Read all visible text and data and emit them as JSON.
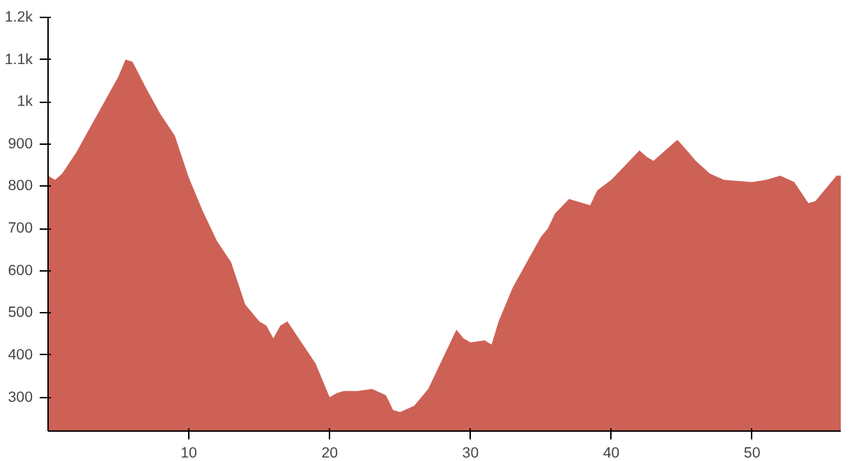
{
  "chart_data": {
    "type": "area",
    "x": [
      0,
      0.5,
      1,
      2,
      3,
      4,
      5,
      5.5,
      6,
      7,
      8,
      9,
      10,
      11,
      12,
      13,
      13.5,
      14,
      15,
      15.5,
      16,
      16.5,
      17,
      18,
      19,
      19.5,
      20,
      20.5,
      21,
      22,
      23,
      24,
      24.5,
      25,
      26,
      27,
      28,
      29,
      29.5,
      30,
      31,
      31.5,
      32,
      33,
      34,
      35,
      35.5,
      36,
      37,
      38,
      38.5,
      39,
      40,
      41,
      42,
      42.5,
      43,
      44,
      44.7,
      45.5,
      46,
      47,
      48,
      50,
      51,
      52,
      53,
      54,
      54.5,
      55,
      56,
      56.3
    ],
    "series": [
      {
        "color": "#cd6155",
        "values": [
          825,
          815,
          830,
          880,
          940,
          1000,
          1060,
          1100,
          1095,
          1030,
          970,
          920,
          820,
          740,
          670,
          620,
          570,
          520,
          480,
          470,
          440,
          470,
          480,
          430,
          380,
          340,
          300,
          310,
          315,
          315,
          320,
          305,
          270,
          265,
          280,
          320,
          390,
          460,
          440,
          430,
          435,
          425,
          480,
          560,
          620,
          680,
          700,
          735,
          770,
          760,
          755,
          790,
          815,
          850,
          885,
          870,
          860,
          890,
          910,
          880,
          860,
          830,
          815,
          810,
          815,
          825,
          810,
          760,
          765,
          785,
          825,
          825
        ]
      }
    ],
    "xlim": [
      0,
      56.3
    ],
    "ylim": [
      220,
      1200
    ],
    "xticks": [
      10,
      20,
      30,
      40,
      50
    ],
    "yticks": [
      300,
      400,
      500,
      600,
      700,
      800,
      900,
      {
        "value": 1000,
        "label": "1k"
      },
      {
        "value": 1100,
        "label": "1.1k"
      },
      {
        "value": 1200,
        "label": "1.2k"
      }
    ],
    "grid": false
  }
}
